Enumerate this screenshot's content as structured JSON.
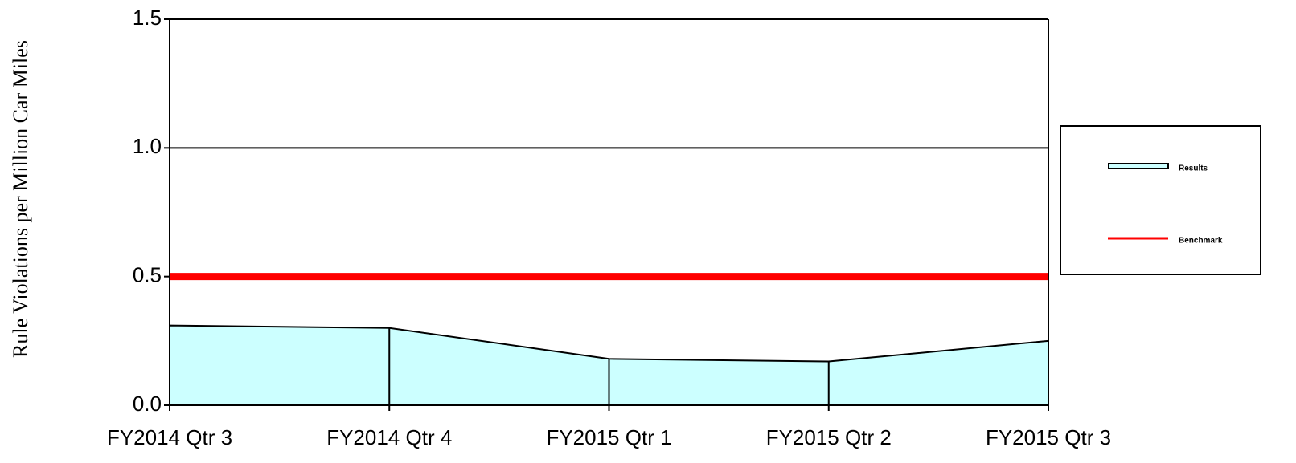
{
  "chart_data": {
    "type": "area",
    "y_axis_label": "Rule Violations per Million Car Miles",
    "categories": [
      "FY2014 Qtr 3",
      "FY2014 Qtr 4",
      "FY2015 Qtr 1",
      "FY2015 Qtr 2",
      "FY2015 Qtr 3"
    ],
    "series": [
      {
        "name": "Results",
        "color": "#ccffff",
        "values": [
          0.31,
          0.3,
          0.18,
          0.17,
          0.25
        ]
      },
      {
        "name": "Benchmark",
        "color": "#ff0000",
        "values": [
          0.5,
          0.5,
          0.5,
          0.5,
          0.5
        ]
      }
    ],
    "ylim": [
      0,
      1.5
    ],
    "yticks": [
      {
        "value": 0,
        "label": "0.0"
      },
      0.5,
      {
        "value": 1,
        "label": "1.0"
      },
      1.5
    ],
    "grid": true,
    "legend": "right"
  }
}
